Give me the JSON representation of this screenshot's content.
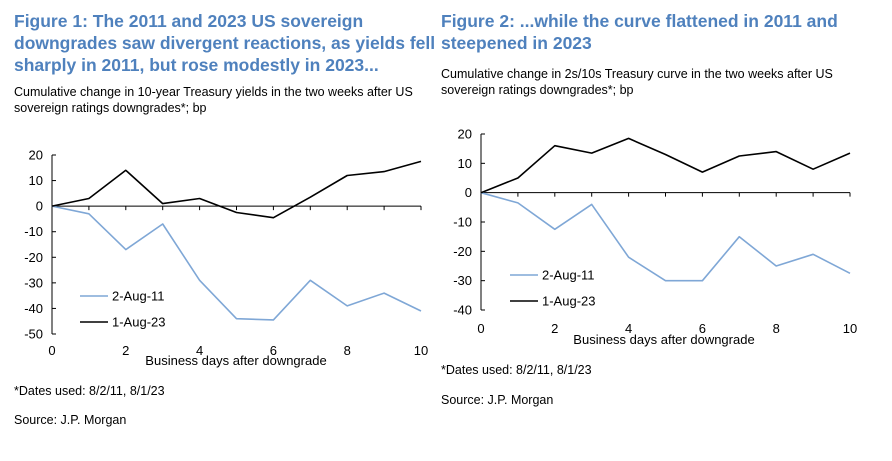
{
  "figure1": {
    "title_line1": "Figure 1: The 2011 and 2023 US sovereign",
    "title_line2": "downgrades saw divergent reactions, as yields fell",
    "title_line3": "sharply in 2011, but rose modestly in 2023...",
    "subtitle_line1": "Cumulative change in 10-year Treasury yields in the two weeks after US",
    "subtitle_line2": "sovereign ratings downgrades*; bp",
    "note": "*Dates used: 8/2/11, 8/1/23",
    "source": "Source: J.P. Morgan"
  },
  "figure2": {
    "title_line1": "Figure 2: ...while the curve flattened in 2011 and",
    "title_line2": "steepened in 2023",
    "subtitle_line1": "Cumulative change in 2s/10s Treasury curve in the two weeks after US",
    "subtitle_line2": "sovereign ratings downgrades*; bp",
    "note": "*Dates used: 8/2/11, 8/1/23",
    "source": "Source: J.P. Morgan"
  },
  "colors": {
    "title": "#4f81bd",
    "series_2011": "#7fa7d6",
    "series_2023": "#000000"
  },
  "chart_data": [
    {
      "type": "line",
      "title": "Figure 1: The 2011 and 2023 US sovereign downgrades saw divergent reactions, as yields fell sharply in 2011, but rose modestly in 2023...",
      "xlabel": "Business days after downgrade",
      "ylabel": "bp",
      "x": [
        0,
        1,
        2,
        3,
        4,
        5,
        6,
        7,
        8,
        9,
        10
      ],
      "xticks": [
        "0",
        "2",
        "4",
        "6",
        "8",
        "10"
      ],
      "xtick_values": [
        0,
        2,
        4,
        6,
        8,
        10
      ],
      "yticks": [
        "20",
        "10",
        "0",
        "-10",
        "-20",
        "-30",
        "-40",
        "-50"
      ],
      "ytick_values": [
        20,
        10,
        0,
        -10,
        -20,
        -30,
        -40,
        -50
      ],
      "xlim": [
        0,
        10
      ],
      "ylim": [
        -50,
        20
      ],
      "series": [
        {
          "name": "2-Aug-11",
          "color": "#7fa7d6",
          "values": [
            0,
            -3,
            -17,
            -7,
            -29,
            -44,
            -44.5,
            -29,
            -39,
            -34,
            -41
          ]
        },
        {
          "name": "1-Aug-23",
          "color": "#000000",
          "values": [
            0,
            3,
            14,
            1,
            3,
            -2.5,
            -4.5,
            3.5,
            12,
            13.5,
            17.5
          ]
        }
      ],
      "legend": [
        {
          "label": "2-Aug-11",
          "color": "#7fa7d6"
        },
        {
          "label": "1-Aug-23",
          "color": "#000000"
        }
      ]
    },
    {
      "type": "line",
      "title": "Figure 2: ...while the curve flattened in 2011 and steepened in 2023",
      "xlabel": "Business days after downgrade",
      "ylabel": "bp",
      "x": [
        0,
        1,
        2,
        3,
        4,
        5,
        6,
        7,
        8,
        9,
        10
      ],
      "xticks": [
        "0",
        "2",
        "4",
        "6",
        "8",
        "10"
      ],
      "xtick_values": [
        0,
        2,
        4,
        6,
        8,
        10
      ],
      "yticks": [
        "20",
        "10",
        "0",
        "-10",
        "-20",
        "-30",
        "-40"
      ],
      "ytick_values": [
        20,
        10,
        0,
        -10,
        -20,
        -30,
        -40
      ],
      "xlim": [
        0,
        10
      ],
      "ylim": [
        -40,
        20
      ],
      "series": [
        {
          "name": "2-Aug-11",
          "color": "#7fa7d6",
          "values": [
            0,
            -3.5,
            -12.5,
            -4,
            -22,
            -30,
            -30,
            -15,
            -25,
            -21,
            -27.5
          ]
        },
        {
          "name": "1-Aug-23",
          "color": "#000000",
          "values": [
            0,
            5,
            16,
            13.5,
            18.5,
            13,
            7,
            12.5,
            14,
            8,
            13.5
          ]
        }
      ],
      "legend": [
        {
          "label": "2-Aug-11",
          "color": "#7fa7d6"
        },
        {
          "label": "1-Aug-23",
          "color": "#000000"
        }
      ]
    }
  ]
}
